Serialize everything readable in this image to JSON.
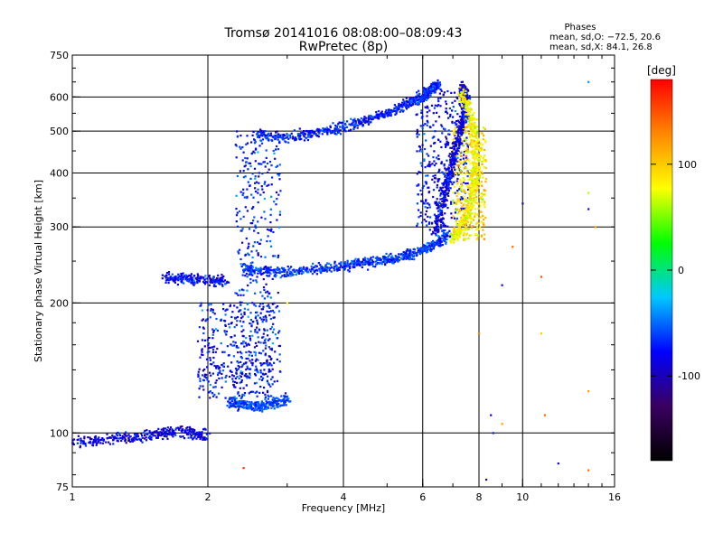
{
  "chart_data": {
    "type": "scatter",
    "title": "Tromsø 20141016 08:08:00–08:09:43",
    "subtitle": "RwPretec (8p)",
    "phases_panel": {
      "heading": "Phases",
      "line_o": "mean, sd,O: −72.5, 20.6",
      "line_x": "mean, sd,X:  84.1, 26.8"
    },
    "xlabel": "Frequency [MHz]",
    "ylabel": "Stationary phase Virtual Height [km]",
    "x_scale": "log",
    "y_scale": "log",
    "xlim": [
      1,
      16
    ],
    "ylim": [
      75,
      750
    ],
    "x_ticks": [
      1,
      2,
      4,
      6,
      8,
      10,
      16
    ],
    "y_ticks": [
      75,
      100,
      200,
      300,
      400,
      500,
      600,
      750
    ],
    "x_gridlines": [
      2,
      4,
      6,
      8,
      10
    ],
    "y_gridlines": [
      100,
      200,
      300,
      400,
      500,
      600
    ],
    "colorbar": {
      "label": "[deg]",
      "range": [
        -180,
        180
      ],
      "ticks": [
        100,
        0,
        -100
      ],
      "colors": [
        "#000000",
        "#3a0060",
        "#0000ff",
        "#00c8ff",
        "#00ff00",
        "#ffff00",
        "#ff8800",
        "#ff0000"
      ]
    },
    "traces": [
      {
        "name": "",
        "phase": -85,
        "spread_deg": 30,
        "points": [
          [
            1.0,
            95
          ],
          [
            1.2,
            97
          ],
          [
            1.4,
            98
          ],
          [
            1.6,
            100
          ],
          [
            1.8,
            101
          ],
          [
            2.0,
            98
          ]
        ]
      },
      {
        "name": "",
        "phase": -80,
        "spread_deg": 35,
        "points": [
          [
            1.6,
            230
          ],
          [
            1.8,
            228
          ],
          [
            2.0,
            226
          ],
          [
            2.2,
            225
          ]
        ]
      },
      {
        "name": "",
        "phase": -60,
        "spread_deg": 25,
        "points": [
          [
            2.25,
            118
          ],
          [
            2.4,
            116
          ],
          [
            2.6,
            115
          ],
          [
            2.8,
            117
          ],
          [
            3.0,
            120
          ]
        ]
      },
      {
        "name": "",
        "phase": -65,
        "spread_deg": 30,
        "points": [
          [
            2.4,
            240
          ],
          [
            2.6,
            238
          ],
          [
            3.0,
            236
          ],
          [
            3.5,
            240
          ],
          [
            4.0,
            244
          ],
          [
            4.5,
            248
          ],
          [
            5.0,
            252
          ],
          [
            5.5,
            258
          ],
          [
            6.0,
            265
          ],
          [
            6.5,
            275
          ],
          [
            6.8,
            290
          ]
        ]
      },
      {
        "name": "",
        "phase": -70,
        "spread_deg": 30,
        "points": [
          [
            2.6,
            490
          ],
          [
            3.0,
            485
          ],
          [
            3.5,
            495
          ],
          [
            4.0,
            510
          ],
          [
            4.5,
            530
          ],
          [
            5.0,
            550
          ],
          [
            5.5,
            575
          ],
          [
            6.0,
            600
          ],
          [
            6.3,
            630
          ],
          [
            6.5,
            640
          ]
        ]
      },
      {
        "name": "",
        "phase": -85,
        "spread_deg": 30,
        "points": [
          [
            6.4,
            290
          ],
          [
            6.6,
            330
          ],
          [
            6.8,
            380
          ],
          [
            7.0,
            430
          ],
          [
            7.2,
            480
          ],
          [
            7.4,
            540
          ],
          [
            7.5,
            600
          ],
          [
            7.3,
            640
          ]
        ]
      },
      {
        "name": "",
        "phase": 80,
        "spread_deg": 30,
        "points": [
          [
            7.0,
            280
          ],
          [
            7.3,
            300
          ],
          [
            7.6,
            330
          ],
          [
            7.8,
            380
          ],
          [
            7.9,
            430
          ],
          [
            7.8,
            500
          ],
          [
            7.6,
            560
          ],
          [
            7.3,
            620
          ]
        ]
      }
    ],
    "fill_regions": [
      {
        "phase": -70,
        "spread_deg": 40,
        "x": [
          2.3,
          2.9
        ],
        "y": [
          130,
          500
        ]
      },
      {
        "phase": -75,
        "spread_deg": 40,
        "x": [
          1.9,
          2.8
        ],
        "y": [
          120,
          200
        ]
      },
      {
        "phase": -80,
        "spread_deg": 35,
        "x": [
          5.8,
          7.6
        ],
        "y": [
          300,
          620
        ]
      },
      {
        "phase": 90,
        "spread_deg": 40,
        "x": [
          7.0,
          8.3
        ],
        "y": [
          280,
          520
        ]
      }
    ],
    "isolated_points": [
      {
        "x": 11.0,
        "y": 230,
        "phase": 150
      },
      {
        "x": 11.0,
        "y": 170,
        "phase": 100
      },
      {
        "x": 14.0,
        "y": 125,
        "phase": 120
      },
      {
        "x": 14.0,
        "y": 82,
        "phase": 140
      },
      {
        "x": 14.0,
        "y": 650,
        "phase": -40
      },
      {
        "x": 14.0,
        "y": 360,
        "phase": 60
      },
      {
        "x": 14.0,
        "y": 330,
        "phase": -100
      },
      {
        "x": 14.5,
        "y": 300,
        "phase": 120
      },
      {
        "x": 10.0,
        "y": 340,
        "phase": -110
      },
      {
        "x": 9.5,
        "y": 270,
        "phase": 140
      },
      {
        "x": 9.0,
        "y": 220,
        "phase": -90
      },
      {
        "x": 8.5,
        "y": 110,
        "phase": -100
      },
      {
        "x": 9.0,
        "y": 105,
        "phase": 120
      },
      {
        "x": 8.0,
        "y": 170,
        "phase": 130
      },
      {
        "x": 2.4,
        "y": 83,
        "phase": 160
      },
      {
        "x": 3.0,
        "y": 200,
        "phase": 80
      },
      {
        "x": 8.3,
        "y": 78,
        "phase": -100
      },
      {
        "x": 12.0,
        "y": 85,
        "phase": -90
      },
      {
        "x": 11.2,
        "y": 110,
        "phase": 140
      },
      {
        "x": 8.6,
        "y": 100,
        "phase": -70
      }
    ]
  }
}
